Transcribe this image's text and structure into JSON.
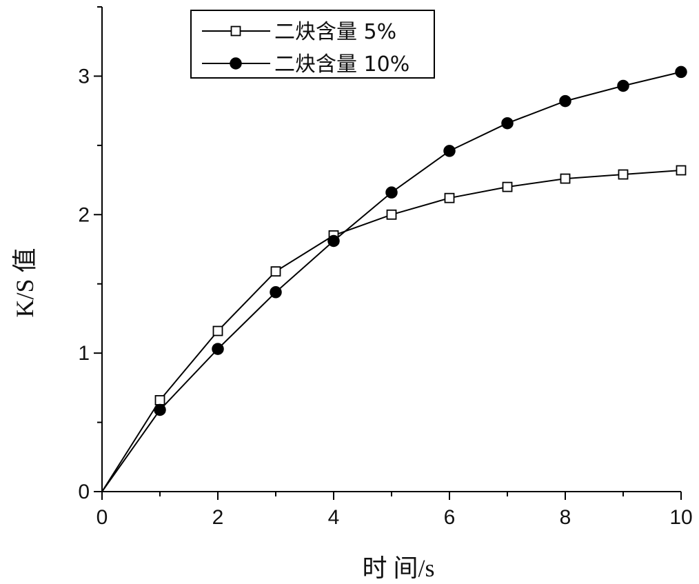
{
  "chart_data": {
    "type": "line",
    "xlabel": "时 间/s",
    "ylabel": "K/S 值",
    "xlim": [
      0,
      10
    ],
    "ylim": [
      0,
      3.5
    ],
    "x_ticks": [
      0,
      2,
      4,
      6,
      8,
      10
    ],
    "y_ticks": [
      0,
      1,
      2,
      3
    ],
    "legend_position": "top-center",
    "series": [
      {
        "name": "二炔含量  5%",
        "marker": "open-square",
        "x": [
          0,
          1,
          2,
          3,
          4,
          5,
          6,
          7,
          8,
          9,
          10
        ],
        "values": [
          0,
          0.66,
          1.16,
          1.59,
          1.85,
          2.0,
          2.12,
          2.2,
          2.26,
          2.29,
          2.32
        ]
      },
      {
        "name": "二炔含量 10%",
        "marker": "filled-circle",
        "x": [
          0,
          1,
          2,
          3,
          4,
          5,
          6,
          7,
          8,
          9,
          10
        ],
        "values": [
          0,
          0.59,
          1.03,
          1.44,
          1.81,
          2.16,
          2.46,
          2.66,
          2.82,
          2.93,
          3.03
        ]
      }
    ]
  }
}
